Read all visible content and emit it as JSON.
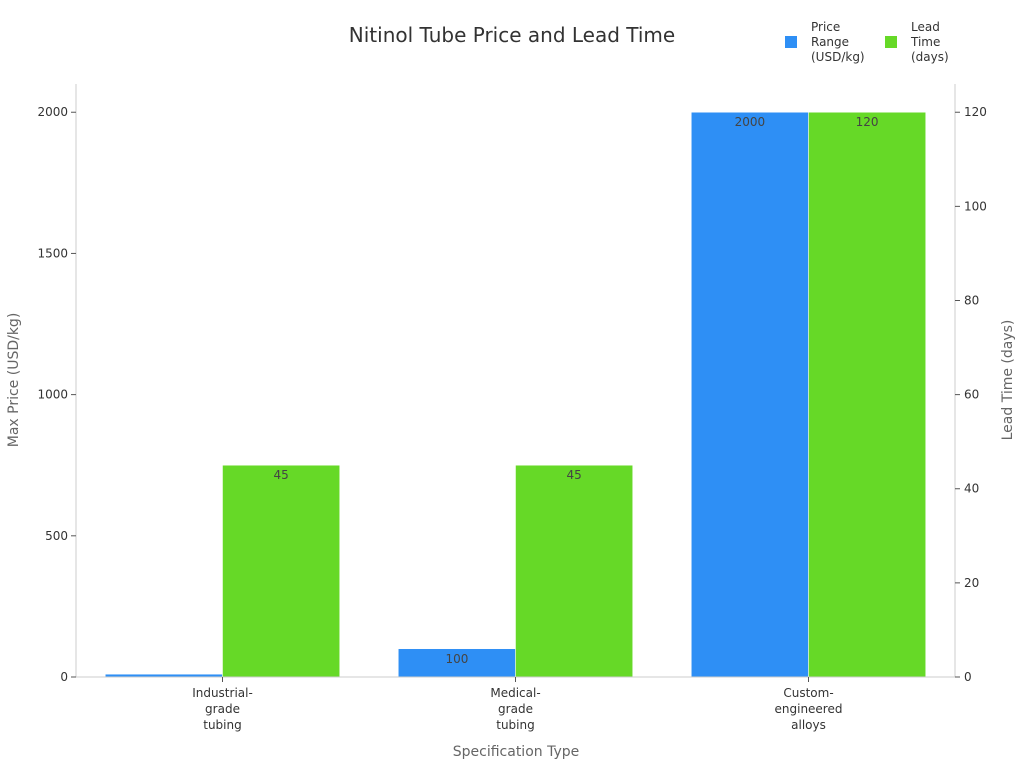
{
  "chart_data": {
    "type": "bar",
    "title": "Nitinol Tube Price and Lead Time",
    "xlabel": "Specification Type",
    "ylabel": "Max Price (USD/kg)",
    "ylabel_right": "Lead Time (days)",
    "categories": [
      [
        "Industrial-",
        "grade",
        "tubing"
      ],
      [
        "Medical-",
        "grade",
        "tubing"
      ],
      [
        "Custom-",
        "engineered",
        "alloys"
      ]
    ],
    "ylim": [
      0,
      2100
    ],
    "ylim_right": [
      0,
      126
    ],
    "yticks": [
      0,
      500,
      1000,
      1500,
      2000
    ],
    "yticks_right": [
      0,
      20,
      40,
      60,
      80,
      100,
      120
    ],
    "series": [
      {
        "name": [
          "Price",
          "Range",
          "(USD/kg)"
        ],
        "axis": "left",
        "color": "#2e8ff5",
        "values": [
          10,
          100,
          2000
        ],
        "labels": [
          "",
          "100",
          "2000"
        ]
      },
      {
        "name": [
          "Lead",
          "Time",
          "(days)"
        ],
        "axis": "right",
        "color": "#66d927",
        "values": [
          45,
          45,
          120
        ],
        "labels": [
          "45",
          "45",
          "120"
        ]
      }
    ],
    "legend_position": "top-right",
    "grid": false
  }
}
